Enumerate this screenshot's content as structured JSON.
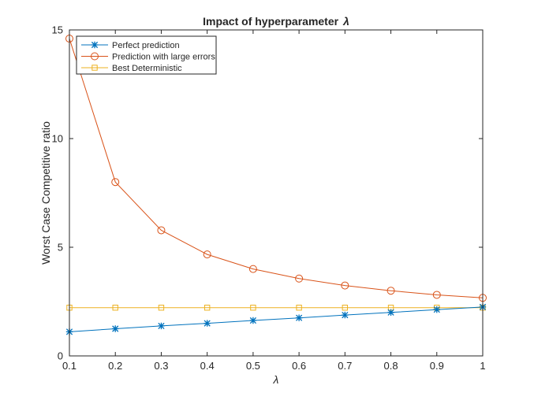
{
  "chart_data": {
    "type": "line",
    "title": "Impact of hyperparameter",
    "title_symbol": "λ",
    "xlabel": "λ",
    "ylabel": "Worst Case Competitive ratio",
    "xlim": [
      0.1,
      1.0
    ],
    "ylim": [
      0,
      15
    ],
    "xticks": [
      "0.1",
      "0.2",
      "0.3",
      "0.4",
      "0.5",
      "0.6",
      "0.7",
      "0.8",
      "0.9",
      "1"
    ],
    "yticks": [
      "0",
      "5",
      "10",
      "15"
    ],
    "grid": false,
    "legend_position": "top-left",
    "x": [
      0.1,
      0.2,
      0.3,
      0.4,
      0.5,
      0.6,
      0.7,
      0.8,
      0.9,
      1.0
    ],
    "series": [
      {
        "name": "Perfect prediction",
        "color": "#0072BD",
        "marker": "asterisk",
        "values": [
          1.11,
          1.25,
          1.38,
          1.5,
          1.63,
          1.75,
          1.88,
          2.0,
          2.13,
          2.25
        ]
      },
      {
        "name": "Prediction with large errors",
        "color": "#D95319",
        "marker": "circle",
        "values": [
          14.6,
          8.0,
          5.78,
          4.67,
          4.0,
          3.56,
          3.24,
          3.0,
          2.81,
          2.67
        ]
      },
      {
        "name": "Best Deterministic",
        "color": "#EDB120",
        "marker": "square",
        "values": [
          2.22,
          2.22,
          2.22,
          2.22,
          2.22,
          2.22,
          2.22,
          2.22,
          2.22,
          2.22
        ]
      }
    ]
  }
}
